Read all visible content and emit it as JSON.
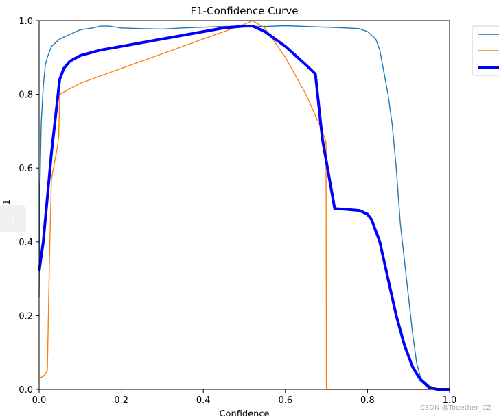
{
  "chart_data": {
    "type": "line",
    "title": "F1-Confidence Curve",
    "xlabel": "Confidence",
    "ylabel": "F1",
    "xlim": [
      0,
      1
    ],
    "ylim": [
      0,
      1
    ],
    "xticks": [
      "0.0",
      "0.2",
      "0.4",
      "0.6",
      "0.8",
      "1.0"
    ],
    "yticks": [
      "0.0",
      "0.2",
      "0.4",
      "0.6",
      "0.8",
      "1.0"
    ],
    "grid": false,
    "legend_position": "outside-right",
    "series": [
      {
        "color": "#1f77b4",
        "width": "thin",
        "x": [
          0,
          0.002,
          0.005,
          0.01,
          0.015,
          0.02,
          0.03,
          0.04,
          0.05,
          0.07,
          0.09,
          0.1,
          0.13,
          0.15,
          0.17,
          0.2,
          0.25,
          0.3,
          0.35,
          0.4,
          0.45,
          0.5,
          0.55,
          0.6,
          0.65,
          0.7,
          0.75,
          0.78,
          0.8,
          0.82,
          0.83,
          0.84,
          0.85,
          0.86,
          0.87,
          0.88,
          0.89,
          0.9,
          0.91,
          0.92,
          0.93,
          0.95,
          0.97,
          1.0
        ],
        "y": [
          0.25,
          0.55,
          0.72,
          0.82,
          0.88,
          0.9,
          0.93,
          0.94,
          0.95,
          0.96,
          0.97,
          0.975,
          0.98,
          0.985,
          0.985,
          0.98,
          0.978,
          0.977,
          0.98,
          0.982,
          0.984,
          0.985,
          0.984,
          0.986,
          0.984,
          0.982,
          0.98,
          0.978,
          0.97,
          0.95,
          0.92,
          0.86,
          0.8,
          0.72,
          0.6,
          0.45,
          0.35,
          0.25,
          0.15,
          0.07,
          0.03,
          0.01,
          0.0,
          0.0
        ]
      },
      {
        "color": "#ff7f0e",
        "width": "thin",
        "x": [
          0,
          0.01,
          0.02,
          0.025,
          0.03,
          0.035,
          0.04,
          0.045,
          0.048,
          0.05,
          0.1,
          0.2,
          0.3,
          0.4,
          0.45,
          0.5,
          0.52,
          0.55,
          0.6,
          0.65,
          0.69,
          0.699,
          0.7,
          1.0
        ],
        "y": [
          0.03,
          0.035,
          0.05,
          0.35,
          0.57,
          0.6,
          0.63,
          0.66,
          0.69,
          0.8,
          0.83,
          0.87,
          0.91,
          0.95,
          0.97,
          0.99,
          1.0,
          0.98,
          0.9,
          0.8,
          0.7,
          0.67,
          0.0,
          0.0
        ]
      },
      {
        "color": "#0000ff",
        "width": "thick",
        "x": [
          0,
          0.01,
          0.02,
          0.03,
          0.04,
          0.05,
          0.06,
          0.075,
          0.1,
          0.15,
          0.2,
          0.3,
          0.4,
          0.45,
          0.5,
          0.52,
          0.55,
          0.6,
          0.65,
          0.673,
          0.69,
          0.72,
          0.75,
          0.78,
          0.8,
          0.81,
          0.83,
          0.85,
          0.87,
          0.89,
          0.91,
          0.93,
          0.95,
          0.97,
          1.0
        ],
        "y": [
          0.32,
          0.4,
          0.52,
          0.64,
          0.74,
          0.84,
          0.87,
          0.89,
          0.905,
          0.92,
          0.93,
          0.95,
          0.97,
          0.98,
          0.985,
          0.985,
          0.97,
          0.93,
          0.88,
          0.855,
          0.68,
          0.49,
          0.488,
          0.485,
          0.475,
          0.46,
          0.4,
          0.3,
          0.2,
          0.12,
          0.06,
          0.025,
          0.005,
          0.0,
          0.0
        ]
      }
    ]
  },
  "watermark": "CSDN @Together_CZ"
}
